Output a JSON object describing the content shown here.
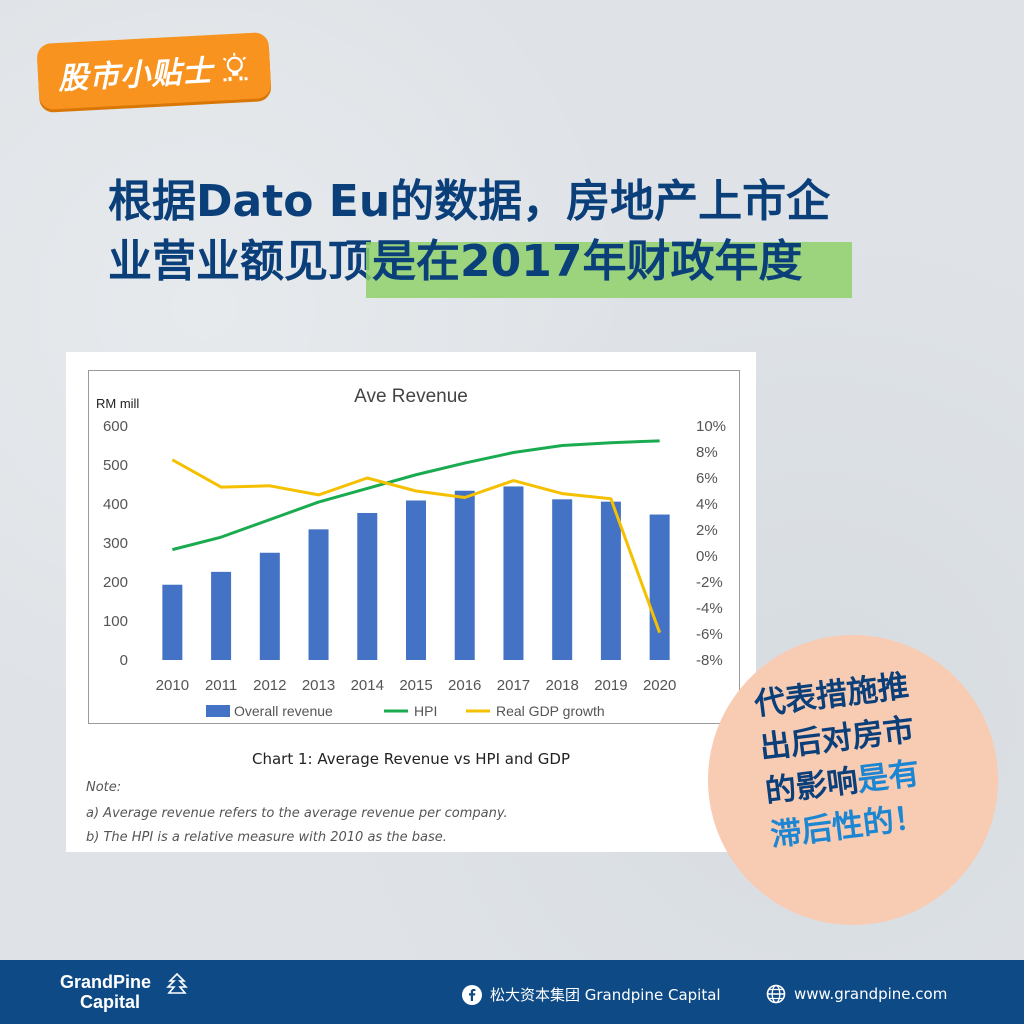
{
  "tag": {
    "label": "股市小贴士",
    "icon": "lightbulb-icon"
  },
  "headline": {
    "line1": "根据Dato Eu的数据，房地产上市企",
    "line2_plain": "业营业额见顶",
    "line2_highlight": "是在2017年财政年度"
  },
  "chart_data": {
    "type": "bar",
    "title": "Ave Revenue",
    "ylabel": "RM mill",
    "categories": [
      "2010",
      "2011",
      "2012",
      "2013",
      "2014",
      "2015",
      "2016",
      "2017",
      "2018",
      "2019",
      "2020"
    ],
    "ylim": [
      0,
      600
    ],
    "y_ticks": [
      "600",
      "500",
      "400",
      "300",
      "200",
      "100",
      "0"
    ],
    "y2lim": [
      -8,
      10
    ],
    "y2_ticks": [
      "10%",
      "8%",
      "6%",
      "4%",
      "2%",
      "0%",
      "-2%",
      "-4%",
      "-6%",
      "-8%"
    ],
    "series": [
      {
        "name": "Overall revenue",
        "kind": "bar",
        "axis": "left",
        "color": "#4472c4",
        "values": [
          193,
          226,
          275,
          335,
          377,
          409,
          434,
          445,
          412,
          406,
          373
        ]
      },
      {
        "name": "HPI",
        "kind": "line",
        "axis": "left",
        "color": "#1aab50",
        "values": [
          283,
          315,
          360,
          405,
          440,
          475,
          505,
          532,
          550,
          557,
          562
        ]
      },
      {
        "name": "Real GDP growth",
        "kind": "line",
        "axis": "right",
        "color": "#f5c000",
        "values": [
          7.4,
          5.3,
          5.4,
          4.7,
          6.0,
          5.0,
          4.5,
          5.8,
          4.8,
          4.4,
          -5.9
        ]
      }
    ],
    "legend": "bottom",
    "grid": false
  },
  "caption": "Chart 1: Average Revenue vs HPI and GDP",
  "notes": {
    "label": "Note:",
    "a": "a) Average revenue refers to the average revenue per company.",
    "b": "b) The HPI is a relative measure with 2010 as the base."
  },
  "callout": {
    "line1": "代表措施推",
    "line2": "出后对房市",
    "line3_plain": "的影响",
    "line3_accent": "是有",
    "line4": "滞后性的！"
  },
  "footer": {
    "brand_line1": "GrandPine",
    "brand_line2": "Capital",
    "facebook_text": "松大资本集团 Grandpine Capital",
    "website": "www.grandpine.com"
  },
  "colors": {
    "navy": "#0b3f7a",
    "orange": "#f7931e",
    "highlight": "#8fd16a",
    "footer": "#0e4a86",
    "callout_bg": "#f8cbb3"
  }
}
